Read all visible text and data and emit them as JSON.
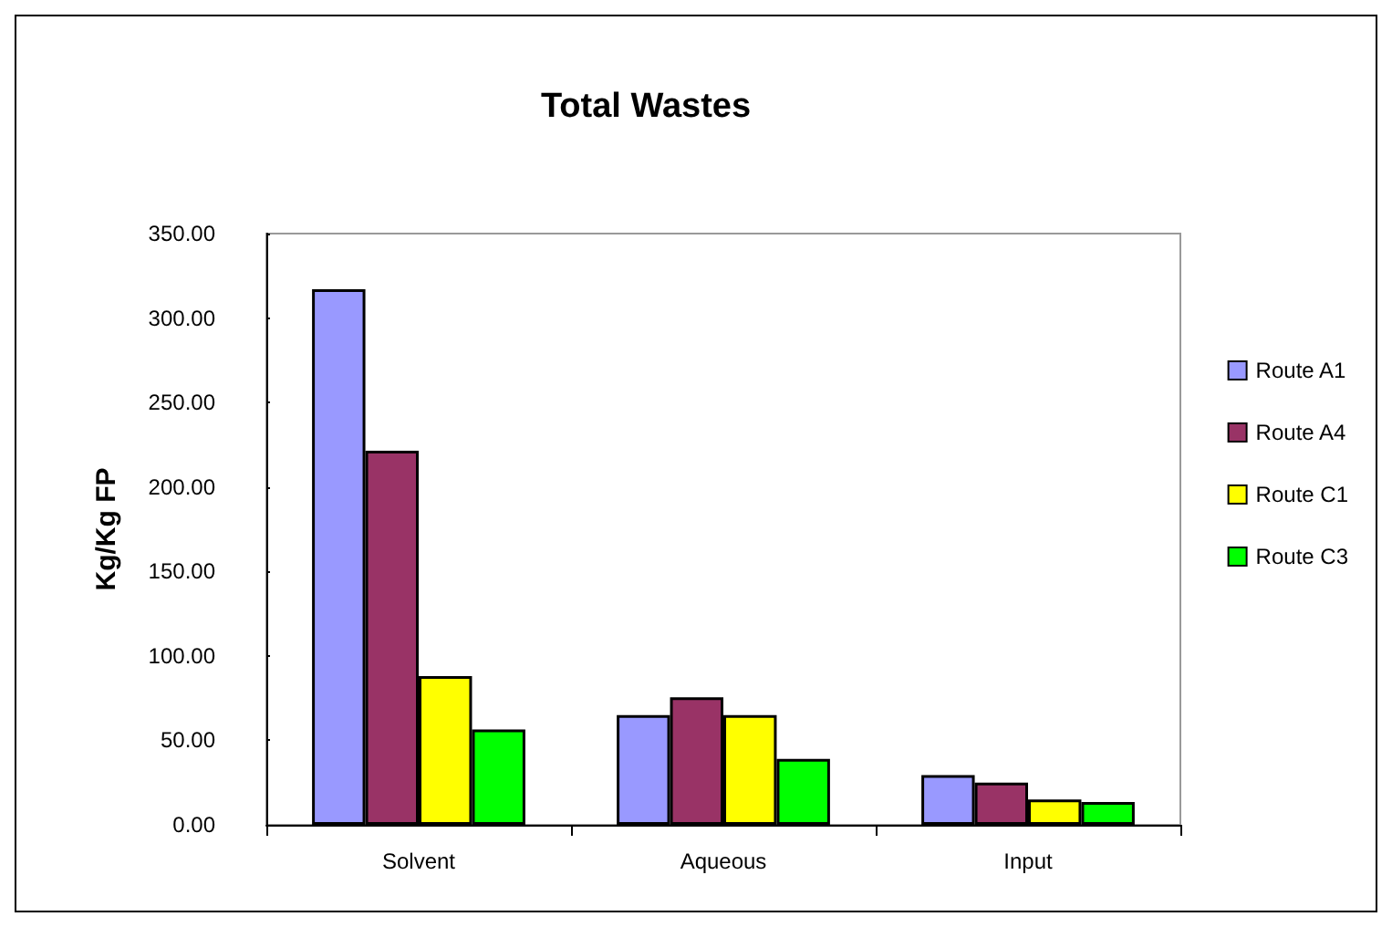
{
  "chart_data": {
    "type": "bar",
    "title": "Total Wastes",
    "ylabel": "Kg/Kg FP",
    "categories": [
      "Solvent",
      "Aqueous",
      "Input"
    ],
    "series": [
      {
        "name": "Route A1",
        "color": "#9999ff",
        "values": [
          317,
          65,
          29.5
        ]
      },
      {
        "name": "Route A4",
        "color": "#993366",
        "values": [
          221.5,
          75.5,
          25
        ]
      },
      {
        "name": "Route C1",
        "color": "#ffff00",
        "values": [
          88,
          65,
          15
        ]
      },
      {
        "name": "Route C3",
        "color": "#00ff00",
        "values": [
          56.5,
          39,
          13.5
        ]
      }
    ],
    "ylim": [
      0,
      350
    ],
    "yticks": [
      {
        "value": 0,
        "label": "0.00"
      },
      {
        "value": 50,
        "label": "50.00"
      },
      {
        "value": 100,
        "label": "100.00"
      },
      {
        "value": 150,
        "label": "150.00"
      },
      {
        "value": 200,
        "label": "200.00"
      },
      {
        "value": 250,
        "label": "250.00"
      },
      {
        "value": 300,
        "label": "300.00"
      },
      {
        "value": 350,
        "label": "350.00"
      }
    ],
    "grid": false,
    "legend": "right"
  }
}
